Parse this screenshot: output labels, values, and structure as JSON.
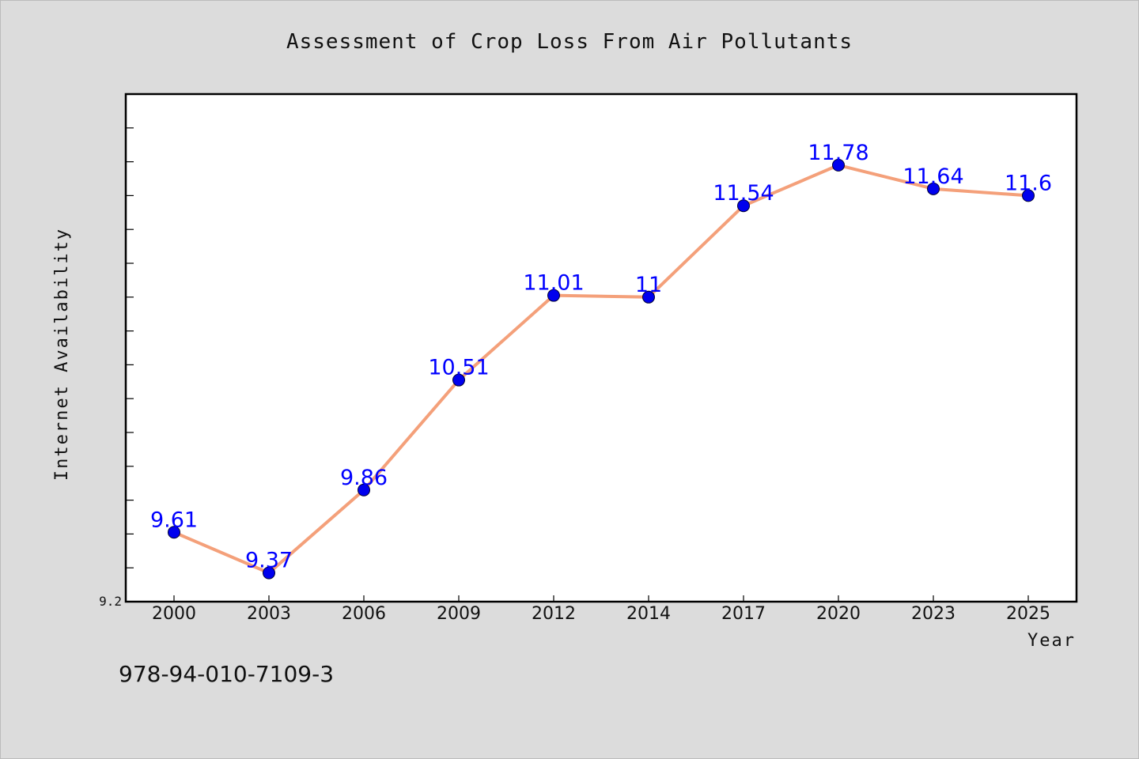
{
  "chart_data": {
    "type": "line",
    "title": "Assessment of Crop Loss From Air Pollutants",
    "xlabel": "Year",
    "ylabel": "Internet Availability",
    "categories": [
      "2000",
      "2003",
      "2006",
      "2009",
      "2012",
      "2014",
      "2017",
      "2020",
      "2023",
      "2025"
    ],
    "series": [
      {
        "values": [
          9.61,
          9.37,
          9.86,
          10.51,
          11.01,
          11,
          11.54,
          11.78,
          11.64,
          11.6
        ]
      }
    ],
    "data_labels": [
      "9.61",
      "9.37",
      "9.86",
      "10.51",
      "11.01",
      "11",
      "11.54",
      "11.78",
      "11.64",
      "11.6"
    ],
    "ylim": [
      9.2,
      12.2
    ],
    "ytick_labels": [
      "9.2"
    ],
    "grid": false,
    "colors": {
      "line": "#f4a07a",
      "marker": "#0000ee",
      "label": "#0000ff",
      "background": "#dcdcdc",
      "plot_background": "#ffffff"
    }
  },
  "footer": {
    "text": "978-94-010-7109-3"
  }
}
